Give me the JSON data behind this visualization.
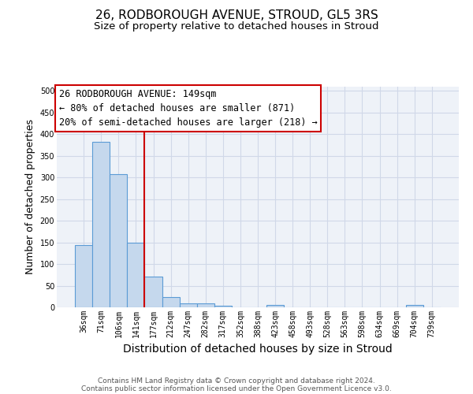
{
  "title1": "26, RODBOROUGH AVENUE, STROUD, GL5 3RS",
  "title2": "Size of property relative to detached houses in Stroud",
  "xlabel": "Distribution of detached houses by size in Stroud",
  "ylabel": "Number of detached properties",
  "categories": [
    "36sqm",
    "71sqm",
    "106sqm",
    "141sqm",
    "177sqm",
    "212sqm",
    "247sqm",
    "282sqm",
    "317sqm",
    "352sqm",
    "388sqm",
    "423sqm",
    "458sqm",
    "493sqm",
    "528sqm",
    "563sqm",
    "598sqm",
    "634sqm",
    "669sqm",
    "704sqm",
    "739sqm"
  ],
  "values": [
    143,
    383,
    308,
    150,
    71,
    24,
    10,
    9,
    4,
    0,
    0,
    5,
    0,
    0,
    0,
    0,
    0,
    0,
    0,
    5,
    0
  ],
  "bar_color": "#c5d8ed",
  "bar_edge_color": "#5b9bd5",
  "vline_x": 3.5,
  "vline_color": "#cc0000",
  "annotation_text": "26 RODBOROUGH AVENUE: 149sqm\n← 80% of detached houses are smaller (871)\n20% of semi-detached houses are larger (218) →",
  "annotation_box_color": "#ffffff",
  "annotation_box_edge_color": "#cc0000",
  "ylim": [
    0,
    510
  ],
  "yticks": [
    0,
    50,
    100,
    150,
    200,
    250,
    300,
    350,
    400,
    450,
    500
  ],
  "grid_color": "#d0d8e8",
  "background_color": "#eef2f8",
  "footer_line1": "Contains HM Land Registry data © Crown copyright and database right 2024.",
  "footer_line2": "Contains public sector information licensed under the Open Government Licence v3.0.",
  "title1_fontsize": 11,
  "title2_fontsize": 9.5,
  "xlabel_fontsize": 10,
  "ylabel_fontsize": 9,
  "annotation_fontsize": 8.5,
  "tick_fontsize": 7,
  "footer_fontsize": 6.5
}
